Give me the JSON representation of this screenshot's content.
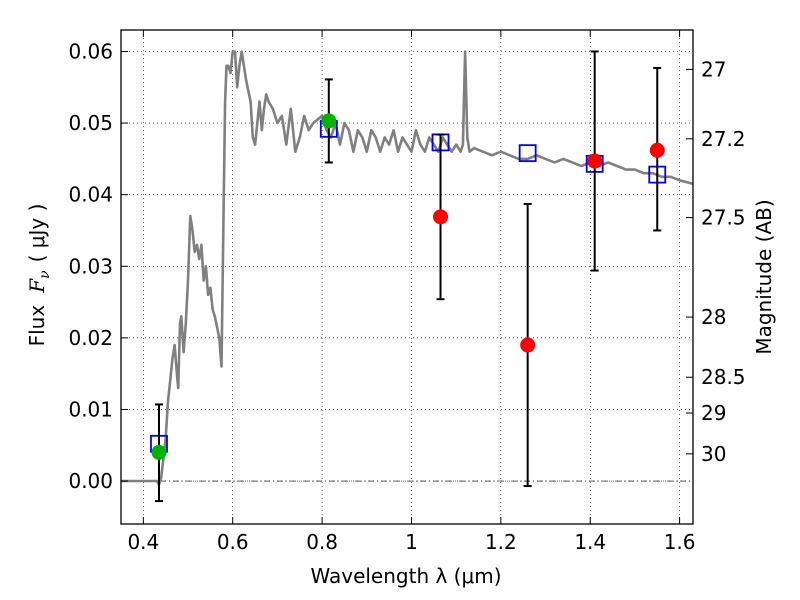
{
  "chart_data": {
    "type": "scatter",
    "title": "",
    "xlabel": "Wavelength  λ (μm)",
    "ylabel_prefix": "Flux",
    "ylabel_symbol": "F",
    "ylabel_subscript": "ν",
    "ylabel_suffix": "(  μJy )",
    "y2label": "Magnitude (AB)",
    "xlim": [
      0.35,
      1.63
    ],
    "ylim": [
      -0.006,
      0.063
    ],
    "x_ticks": [
      0.4,
      0.6,
      0.8,
      1.0,
      1.2,
      1.4,
      1.6
    ],
    "x_tick_labels": [
      "0.4",
      "0.6",
      "0.8",
      "1",
      "1.2",
      "1.4",
      "1.6"
    ],
    "y_ticks": [
      0.0,
      0.01,
      0.02,
      0.03,
      0.04,
      0.05,
      0.06
    ],
    "y_tick_labels": [
      "0.00",
      "0.01",
      "0.02",
      "0.03",
      "0.04",
      "0.05",
      "0.06"
    ],
    "y2_ticks": [
      {
        "label": "27",
        "flux": 0.0575
      },
      {
        "label": "27.2",
        "flux": 0.0478
      },
      {
        "label": "27.5",
        "flux": 0.0368
      },
      {
        "label": "28",
        "flux": 0.0229
      },
      {
        "label": "28.5",
        "flux": 0.0145
      },
      {
        "label": "29",
        "flux": 0.0095
      },
      {
        "label": "30",
        "flux": 0.0038
      }
    ],
    "grid": true,
    "series": [
      {
        "kind": "line",
        "color": "#808080",
        "x": [
          0.35,
          0.43,
          0.435,
          0.44,
          0.45,
          0.455,
          0.46,
          0.465,
          0.47,
          0.475,
          0.478,
          0.482,
          0.485,
          0.49,
          0.495,
          0.5,
          0.505,
          0.51,
          0.515,
          0.52,
          0.525,
          0.53,
          0.535,
          0.54,
          0.545,
          0.55,
          0.555,
          0.56,
          0.57,
          0.575,
          0.58,
          0.583,
          0.586,
          0.59,
          0.595,
          0.6,
          0.605,
          0.61,
          0.615,
          0.62,
          0.625,
          0.63,
          0.64,
          0.645,
          0.65,
          0.66,
          0.665,
          0.67,
          0.675,
          0.68,
          0.69,
          0.7,
          0.71,
          0.72,
          0.73,
          0.74,
          0.75,
          0.76,
          0.77,
          0.78,
          0.8,
          0.81,
          0.82,
          0.83,
          0.84,
          0.85,
          0.86,
          0.87,
          0.88,
          0.89,
          0.9,
          0.91,
          0.92,
          0.93,
          0.94,
          0.95,
          0.96,
          0.97,
          0.98,
          0.99,
          1.0,
          1.01,
          1.02,
          1.03,
          1.04,
          1.05,
          1.06,
          1.07,
          1.08,
          1.09,
          1.1,
          1.11,
          1.115,
          1.12,
          1.125,
          1.13,
          1.14,
          1.16,
          1.18,
          1.2,
          1.22,
          1.24,
          1.26,
          1.28,
          1.3,
          1.32,
          1.34,
          1.36,
          1.38,
          1.4,
          1.42,
          1.44,
          1.46,
          1.48,
          1.5,
          1.52,
          1.54,
          1.56,
          1.58,
          1.6,
          1.63
        ],
        "y": [
          0.0,
          0.0,
          -0.0005,
          0.0005,
          0.006,
          0.011,
          0.014,
          0.017,
          0.019,
          0.015,
          0.013,
          0.022,
          0.023,
          0.018,
          0.022,
          0.028,
          0.037,
          0.035,
          0.032,
          0.033,
          0.031,
          0.033,
          0.028,
          0.03,
          0.026,
          0.027,
          0.024,
          0.023,
          0.02,
          0.016,
          0.04,
          0.053,
          0.058,
          0.058,
          0.057,
          0.06,
          0.06,
          0.055,
          0.058,
          0.06,
          0.058,
          0.056,
          0.053,
          0.048,
          0.047,
          0.053,
          0.049,
          0.052,
          0.054,
          0.053,
          0.052,
          0.05,
          0.051,
          0.047,
          0.052,
          0.046,
          0.048,
          0.051,
          0.049,
          0.05,
          0.051,
          0.049,
          0.048,
          0.05,
          0.047,
          0.05,
          0.049,
          0.046,
          0.049,
          0.048,
          0.046,
          0.049,
          0.048,
          0.046,
          0.048,
          0.047,
          0.049,
          0.046,
          0.048,
          0.047,
          0.046,
          0.049,
          0.047,
          0.046,
          0.048,
          0.047,
          0.046,
          0.048,
          0.047,
          0.046,
          0.047,
          0.046,
          0.047,
          0.06,
          0.048,
          0.046,
          0.0465,
          0.046,
          0.0455,
          0.046,
          0.0455,
          0.045,
          0.045,
          0.0455,
          0.045,
          0.0445,
          0.045,
          0.0445,
          0.044,
          0.0445,
          0.044,
          0.0445,
          0.044,
          0.0435,
          0.0435,
          0.043,
          0.043,
          0.0425,
          0.0425,
          0.042,
          0.0415
        ]
      },
      {
        "kind": "squares",
        "color": "#0000ff",
        "x": [
          0.435,
          0.815,
          1.065,
          1.26,
          1.41,
          1.55
        ],
        "y": [
          0.0052,
          0.0492,
          0.0473,
          0.0458,
          0.0443,
          0.0428
        ]
      },
      {
        "kind": "points",
        "color": "#00b300",
        "x": [
          0.435,
          0.815
        ],
        "y": [
          0.004,
          0.0503
        ],
        "yerr_low": [
          0.0068,
          0.0058
        ],
        "yerr_high": [
          0.0067,
          0.0058
        ]
      },
      {
        "kind": "points",
        "color": "#ff0000",
        "x": [
          1.065,
          1.26,
          1.41,
          1.55
        ],
        "y": [
          0.0369,
          0.019,
          0.0447,
          0.0462
        ],
        "yerr_low": [
          0.0115,
          0.0197,
          0.0153,
          0.0112
        ],
        "yerr_high": [
          0.0115,
          0.0197,
          0.0153,
          0.0115
        ]
      }
    ]
  }
}
